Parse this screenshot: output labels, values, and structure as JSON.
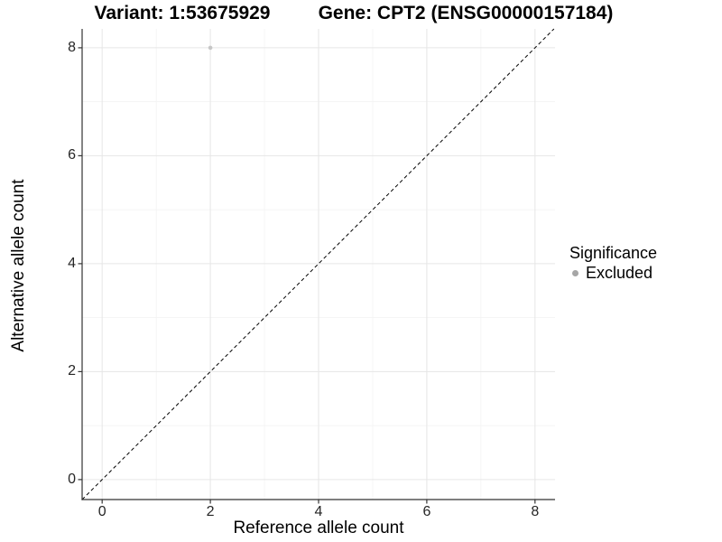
{
  "chart_data": {
    "type": "scatter",
    "titles": {
      "left": "Variant: 1:53675929",
      "right": "Gene: CPT2 (ENSG00000157184)"
    },
    "xlabel": "Reference allele count",
    "ylabel": "Alternative allele count",
    "xlim": [
      -0.37,
      8.37
    ],
    "ylim": [
      -0.37,
      8.35
    ],
    "xticks": [
      0,
      2,
      4,
      6,
      8
    ],
    "yticks": [
      0,
      2,
      4,
      6,
      8
    ],
    "grid": {
      "major": true,
      "minor": true,
      "major_color": "#e6e6e6",
      "minor_color": "#f2f2f2"
    },
    "abline": {
      "slope": 1,
      "intercept": 0,
      "color": "#000000",
      "dash": "4 3",
      "width": 1
    },
    "series": [
      {
        "name": "Excluded",
        "color": "#c6c6c6",
        "point_radius": 2.3,
        "points": [
          {
            "x": 2,
            "y": 8
          }
        ]
      }
    ],
    "legend": {
      "title": "Significance",
      "position": "right",
      "items": [
        {
          "label": "Excluded",
          "color": "#a6a6a6"
        }
      ]
    },
    "colors": {
      "axis_line": "#333333",
      "tick_mark": "#333333",
      "tick_text": "#262626",
      "panel_background": "#ffffff"
    }
  }
}
